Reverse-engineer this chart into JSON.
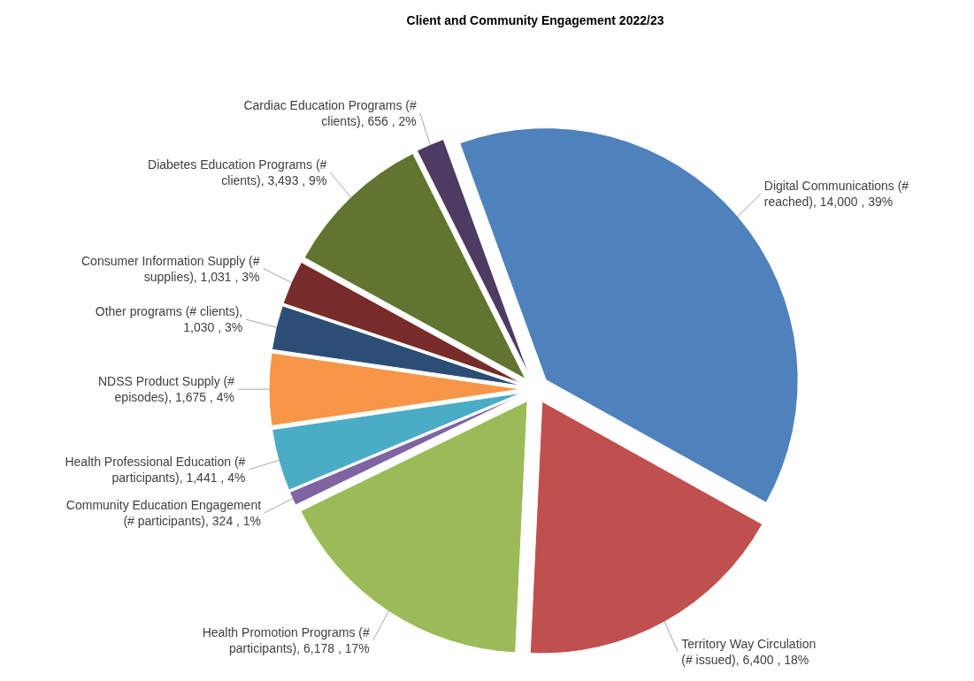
{
  "chart_data": {
    "type": "pie",
    "title": "Client and Community Engagement 2022/23",
    "categories": [
      "Digital Communications (# reached)",
      "Territory Way Circulation (# issued)",
      "Health Promotion Programs (# participants)",
      "Community Education Engagement (# participants)",
      "Health Professional Education (# participants)",
      "NDSS Product Supply (# episodes)",
      "Other programs (# clients)",
      "Consumer Information Supply (# supplies)",
      "Diabetes Education Programs (# clients)",
      "Cardiac Education Programs (# clients)"
    ],
    "values": [
      14000,
      6400,
      6178,
      324,
      1441,
      1675,
      1030,
      1031,
      3493,
      656
    ],
    "value_labels": [
      ", 14,000 , 39%",
      ", 6,400 , 18%",
      ", 6,178 , 17%",
      ", 324 , 1%",
      ", 1,441 , 4%",
      ", 1,675 , 4%",
      ", 1,030 , 3%",
      ", 1,031 , 3%",
      ", 3,493 , 9%",
      ", 656 , 2%"
    ],
    "colors": [
      "#4f81bd",
      "#c0504d",
      "#9bbb59",
      "#8064a2",
      "#4bacc6",
      "#f79646",
      "#2c4d75",
      "#772c2a",
      "#5f7530",
      "#4d3b62"
    ]
  }
}
